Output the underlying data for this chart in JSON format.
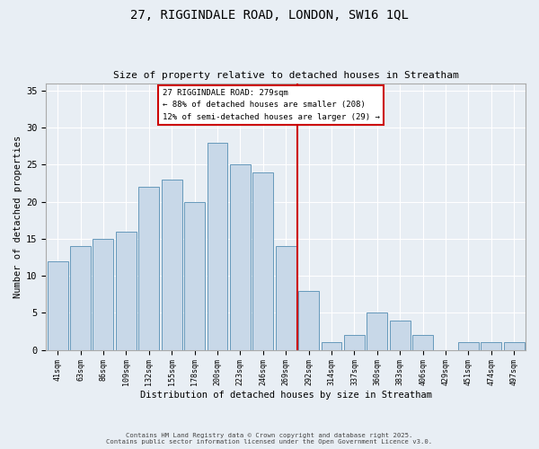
{
  "title_line1": "27, RIGGINDALE ROAD, LONDON, SW16 1QL",
  "title_line2": "Size of property relative to detached houses in Streatham",
  "xlabel": "Distribution of detached houses by size in Streatham",
  "ylabel": "Number of detached properties",
  "bar_labels": [
    "41sqm",
    "63sqm",
    "86sqm",
    "109sqm",
    "132sqm",
    "155sqm",
    "178sqm",
    "200sqm",
    "223sqm",
    "246sqm",
    "269sqm",
    "292sqm",
    "314sqm",
    "337sqm",
    "360sqm",
    "383sqm",
    "406sqm",
    "429sqm",
    "451sqm",
    "474sqm",
    "497sqm"
  ],
  "bar_values": [
    12,
    14,
    15,
    16,
    22,
    23,
    20,
    28,
    25,
    24,
    14,
    8,
    1,
    2,
    5,
    4,
    2,
    0,
    1,
    1,
    1
  ],
  "bar_color": "#c8d8e8",
  "bar_edge_color": "#6699bb",
  "reference_line_x": 10.5,
  "annotation_line1": "27 RIGGINDALE ROAD: 279sqm",
  "annotation_line2": "← 88% of detached houses are smaller (208)",
  "annotation_line3": "12% of semi-detached houses are larger (29) →",
  "annotation_box_color": "#ffffff",
  "annotation_box_edge_color": "#cc0000",
  "vline_color": "#cc0000",
  "ylim": [
    0,
    36
  ],
  "yticks": [
    0,
    5,
    10,
    15,
    20,
    25,
    30,
    35
  ],
  "footer_line1": "Contains HM Land Registry data © Crown copyright and database right 2025.",
  "footer_line2": "Contains public sector information licensed under the Open Government Licence v3.0.",
  "background_color": "#e8eef4",
  "grid_color": "#ffffff",
  "font_color": "#333333"
}
